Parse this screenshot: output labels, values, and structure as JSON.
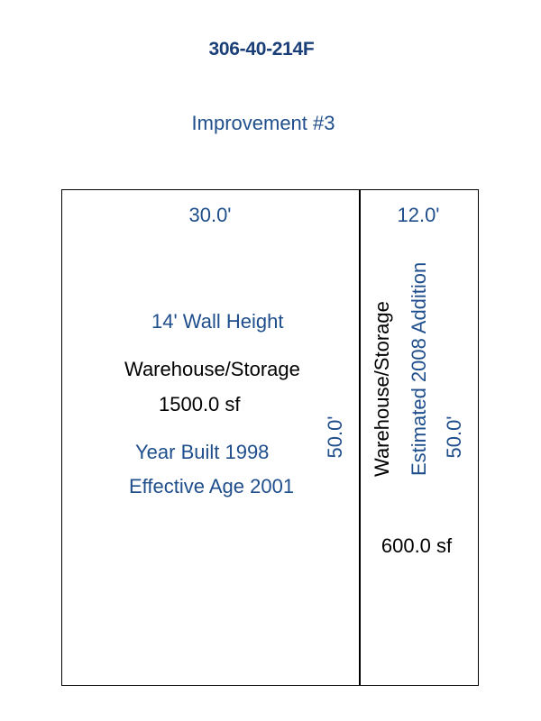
{
  "parcel_id": "306-40-214F",
  "improvement_title": "Improvement #3",
  "main_area": {
    "width_label": "30.0'",
    "depth_label": "50.0'",
    "wall_height": "14' Wall Height",
    "use": "Warehouse/Storage",
    "area": "1500.0 sf",
    "year_built": "Year Built 1998",
    "effective_age": "Effective Age 2001"
  },
  "addition_area": {
    "width_label": "12.0'",
    "depth_label": "50.0'",
    "use": "Warehouse/Storage",
    "note": "Estimated 2008 Addition",
    "area": "600.0 sf"
  },
  "colors": {
    "label_blue": "#1f4e8c",
    "title_blue": "#1a3f78",
    "outline": "#000000"
  }
}
